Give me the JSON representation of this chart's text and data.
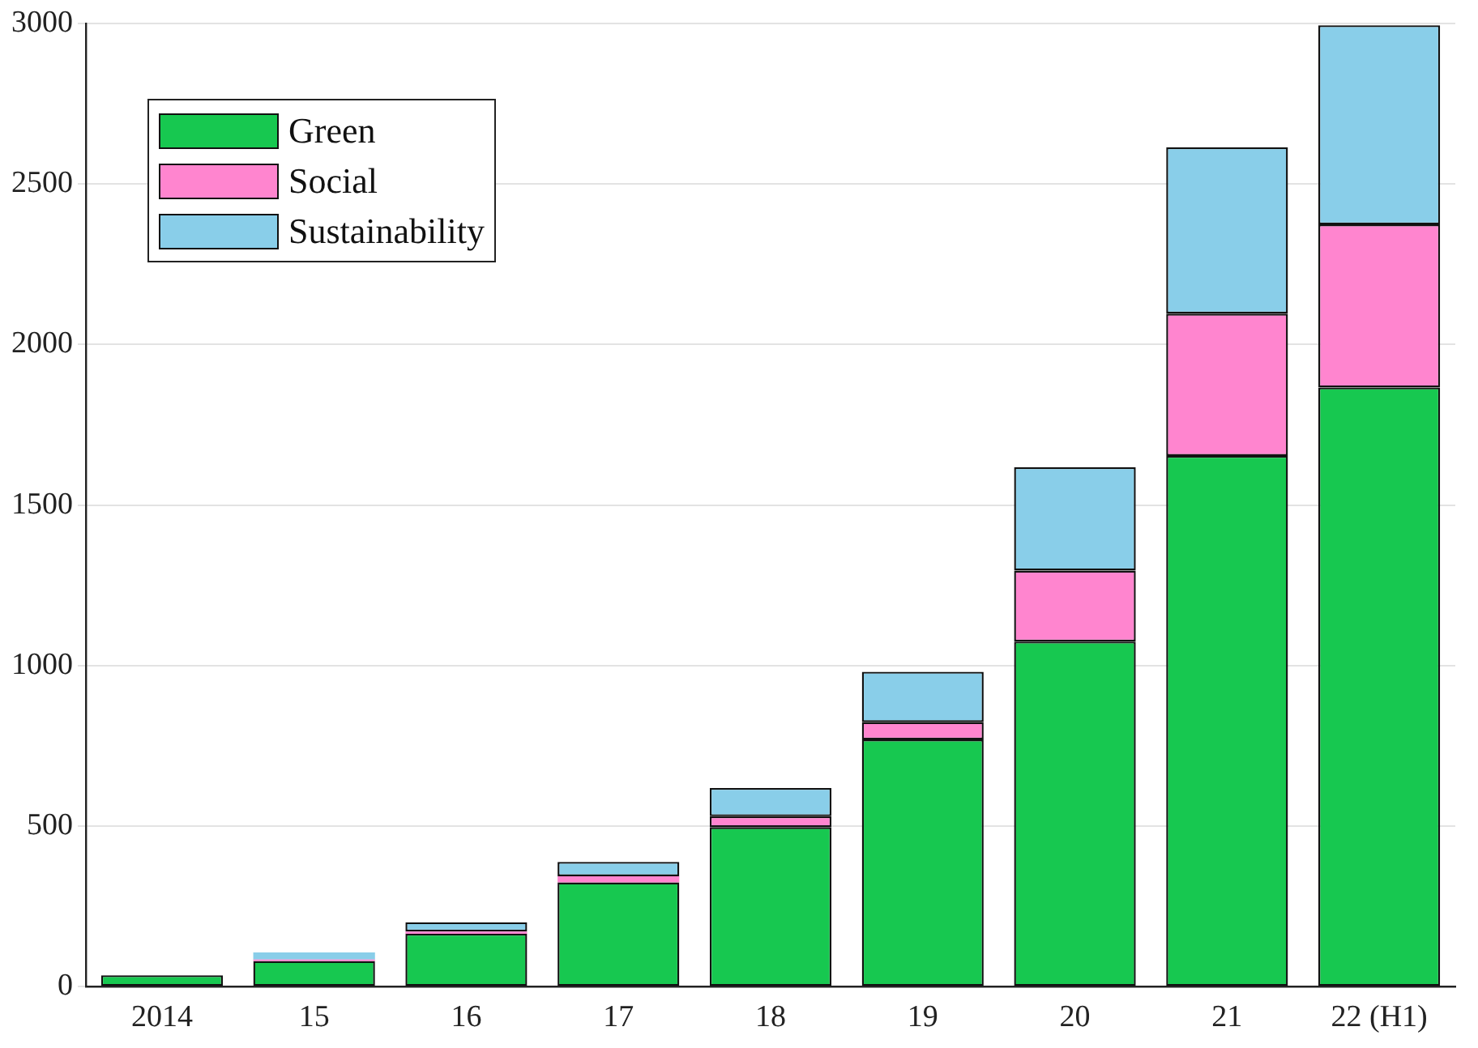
{
  "chart_data": {
    "type": "bar",
    "stacked": true,
    "categories": [
      "2014",
      "15",
      "16",
      "17",
      "18",
      "19",
      "20",
      "21",
      "22 (H1)"
    ],
    "series": [
      {
        "name": "Green",
        "color": "#17c850",
        "values": [
          36,
          80,
          165,
          325,
          497,
          770,
          1075,
          1653,
          1866
        ]
      },
      {
        "name": "Social",
        "color": "#ff85cf",
        "values": [
          null,
          5,
          7,
          19,
          34,
          54,
          221,
          443,
          508
        ]
      },
      {
        "name": "Sustainability",
        "color": "#89cee9",
        "values": [
          null,
          22,
          29,
          45,
          88,
          157,
          322,
          518,
          620
        ]
      }
    ],
    "ylim": [
      0,
      3000
    ],
    "yticks": [
      0,
      500,
      1000,
      1500,
      2000,
      2500,
      3000
    ],
    "grid": "y",
    "legend": "top left"
  }
}
